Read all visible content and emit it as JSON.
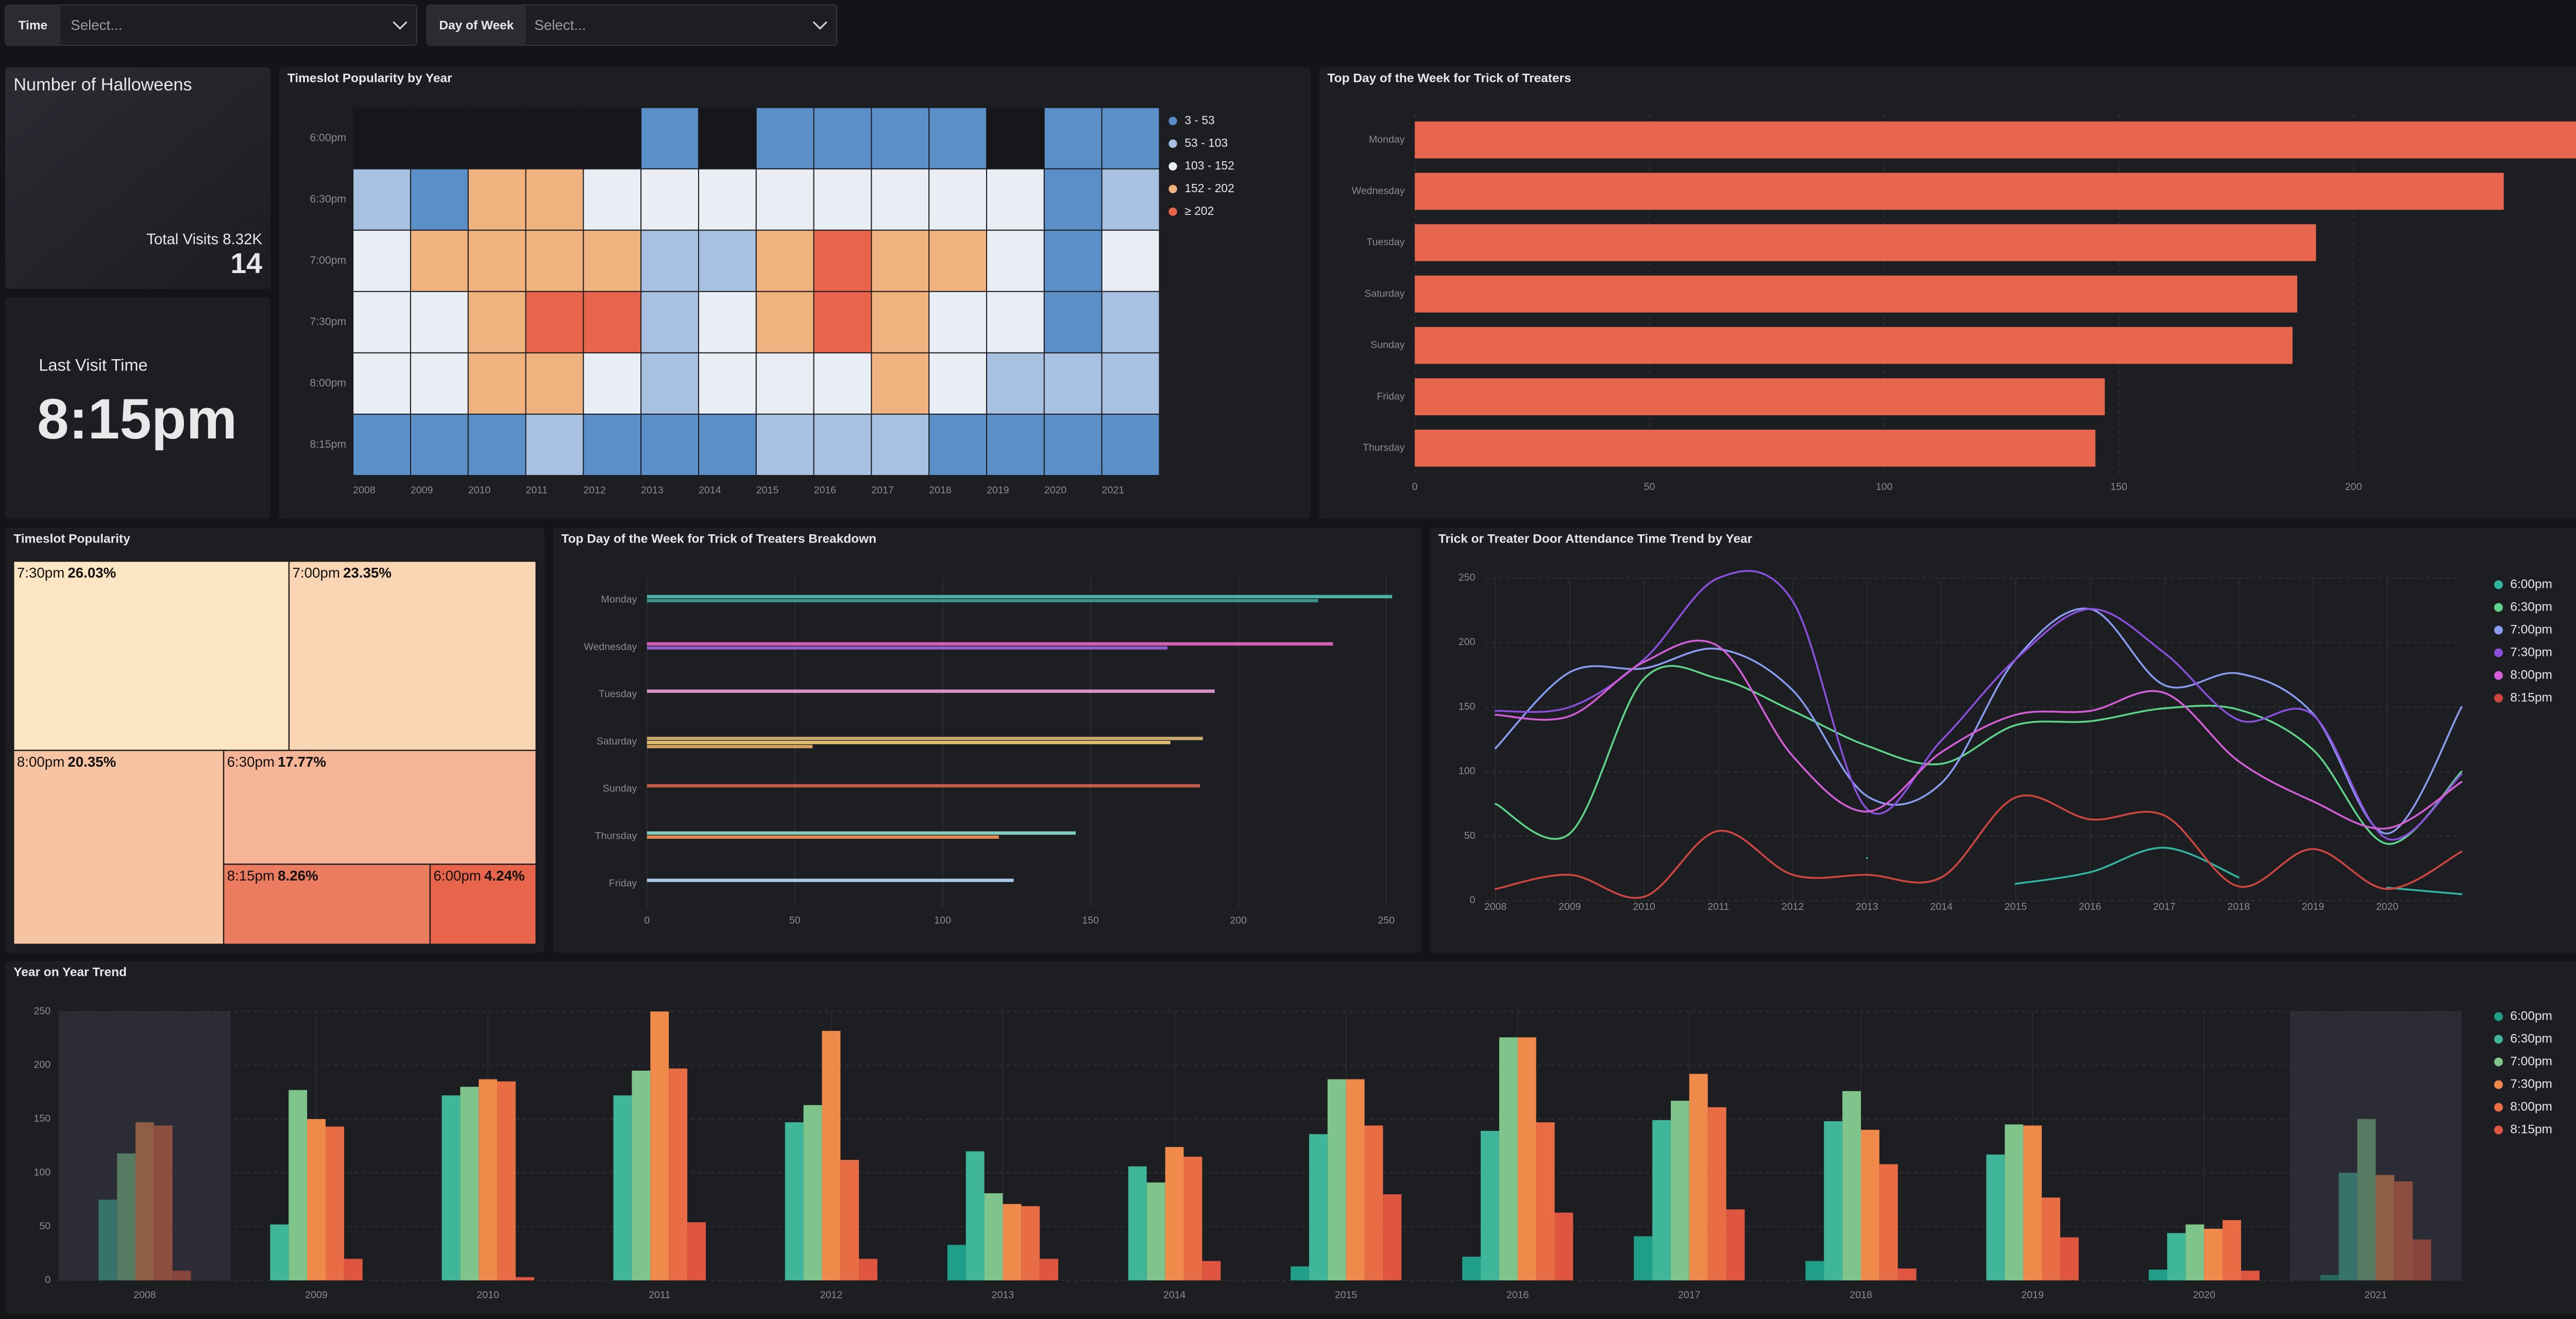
{
  "filters": [
    {
      "label": "Time",
      "placeholder": "Select..."
    },
    {
      "label": "Day of Week",
      "placeholder": "Select..."
    }
  ],
  "kpis": [
    {
      "title": "Number of Halloweens",
      "subtitle": "Total Visits 8.32K",
      "value": 14
    },
    {
      "title": "Last Visit Time",
      "value": "8:15pm"
    }
  ],
  "chart_data": [
    {
      "type": "heatmap",
      "title": "Timeslot Popularity by Year",
      "categories": [
        2008,
        2009,
        2010,
        2011,
        2012,
        2013,
        2014,
        2015,
        2016,
        2017,
        2018,
        2019,
        2020,
        2021
      ],
      "rows": [
        "6:00pm",
        "6:30pm",
        "7:00pm",
        "7:30pm",
        "8:00pm",
        "8:15pm"
      ],
      "values": [
        [
          null,
          null,
          null,
          null,
          null,
          33,
          null,
          13,
          22,
          41,
          18,
          null,
          10,
          5
        ],
        [
          75,
          52,
          172,
          172,
          147,
          120,
          106,
          136,
          139,
          149,
          148,
          117,
          44,
          100
        ],
        [
          118,
          177,
          180,
          195,
          163,
          81,
          91,
          187,
          226,
          167,
          176,
          145,
          52,
          150
        ],
        [
          147,
          150,
          187,
          250,
          232,
          71,
          124,
          187,
          226,
          192,
          140,
          144,
          48,
          98
        ],
        [
          144,
          143,
          185,
          197,
          112,
          69,
          115,
          144,
          147,
          161,
          108,
          77,
          56,
          92
        ],
        [
          9,
          20,
          3,
          54,
          20,
          20,
          18,
          80,
          63,
          66,
          11,
          40,
          9,
          38
        ]
      ],
      "legend": [
        {
          "label": "3 - 53",
          "color": "#5b8fc7",
          "min": 3
        },
        {
          "label": "53 - 103",
          "color": "#a9c1e1",
          "min": 53
        },
        {
          "label": "103 - 152",
          "color": "#e9eef5",
          "min": 103
        },
        {
          "label": "152 - 202",
          "color": "#f0b27f",
          "min": 152
        },
        {
          "label": "≥ 202",
          "color": "#e8644a",
          "min": 202
        }
      ],
      "empty_color": "#16171b"
    },
    {
      "type": "hbar",
      "title": "Top Day of the Week for Trick of Treaters",
      "categories": [
        "Monday",
        "Wednesday",
        "Tuesday",
        "Saturday",
        "Sunday",
        "Friday",
        "Thursday"
      ],
      "values": [
        252,
        232,
        192,
        188,
        187,
        147,
        145
      ],
      "color": "#e8664d",
      "xlim": [
        0,
        252
      ],
      "xticks": [
        0,
        50,
        100,
        150,
        200,
        250
      ],
      "grid": true
    },
    {
      "type": "treemap",
      "title": "Timeslot Popularity",
      "categories": [
        "7:30pm",
        "7:00pm",
        "8:00pm",
        "6:30pm",
        "8:15pm",
        "6:00pm"
      ],
      "values": [
        26.03,
        23.35,
        20.35,
        17.77,
        8.26,
        4.24
      ],
      "value_labels": [
        "26.03%",
        "23.35%",
        "20.35%",
        "17.77%",
        "8.26%",
        "4.24%"
      ],
      "color_range": [
        "#fbe5c2",
        "#e8644a"
      ]
    },
    {
      "type": "hbar_lines",
      "title": "Top Day of the Week for Trick of Treaters Breakdown",
      "categories": [
        "Monday",
        "Wednesday",
        "Tuesday",
        "Saturday",
        "Sunday",
        "Thursday",
        "Friday"
      ],
      "series": [
        {
          "color": "#49b3a6",
          "values": [
            252,
            null,
            null,
            null,
            null,
            null,
            null
          ]
        },
        {
          "color": "#3d8f87",
          "values": [
            227,
            null,
            null,
            null,
            null,
            null,
            null
          ]
        },
        {
          "color": "#d35fb7",
          "values": [
            null,
            232,
            null,
            null,
            null,
            null,
            null
          ]
        },
        {
          "color": "#8e5bc0",
          "values": [
            null,
            176,
            null,
            null,
            null,
            null,
            null
          ]
        },
        {
          "color": "#d892c8",
          "values": [
            null,
            null,
            192,
            null,
            null,
            null,
            null
          ]
        },
        {
          "color": "#c9a86a",
          "values": [
            null,
            null,
            null,
            188,
            null,
            null,
            null
          ]
        },
        {
          "color": "#e0c070",
          "values": [
            null,
            null,
            null,
            177,
            null,
            null,
            null
          ]
        },
        {
          "color": "#d8a060",
          "values": [
            null,
            null,
            null,
            56,
            null,
            null,
            null
          ]
        },
        {
          "color": "#c45a4a",
          "values": [
            null,
            null,
            null,
            null,
            187,
            null,
            null
          ]
        },
        {
          "color": "#7fcfc0",
          "values": [
            null,
            null,
            null,
            null,
            null,
            145,
            null
          ]
        },
        {
          "color": "#e08a50",
          "values": [
            null,
            null,
            null,
            null,
            null,
            119,
            null
          ]
        },
        {
          "color": "#a8c8e8",
          "values": [
            null,
            null,
            null,
            null,
            null,
            null,
            124
          ]
        }
      ],
      "xlim": [
        0,
        252
      ],
      "xticks": [
        0,
        50,
        100,
        150,
        200,
        250
      ],
      "grid": true
    },
    {
      "type": "line",
      "title": "Trick or Treater Door Attendance Time Trend by Year",
      "x": [
        2008,
        2009,
        2010,
        2011,
        2012,
        2013,
        2014,
        2015,
        2016,
        2017,
        2018,
        2019,
        2020,
        2021
      ],
      "xlim": [
        2008,
        2021
      ],
      "xticks": [
        2008,
        2009,
        2010,
        2011,
        2012,
        2013,
        2014,
        2015,
        2016,
        2017,
        2018,
        2019,
        2020
      ],
      "ylim": [
        0,
        250
      ],
      "yticks": [
        0,
        50,
        100,
        150,
        200,
        250
      ],
      "grid": true,
      "legend": "right",
      "series": [
        {
          "name": "6:00pm",
          "color": "#2fb5a0",
          "values": [
            null,
            null,
            null,
            null,
            null,
            33,
            null,
            13,
            22,
            41,
            18,
            null,
            10,
            5
          ]
        },
        {
          "name": "6:30pm",
          "color": "#5ed48a",
          "values": [
            75,
            52,
            172,
            172,
            147,
            120,
            106,
            136,
            139,
            149,
            148,
            117,
            44,
            100
          ]
        },
        {
          "name": "7:00pm",
          "color": "#8a9cf0",
          "values": [
            118,
            177,
            180,
            195,
            163,
            81,
            91,
            187,
            226,
            167,
            176,
            145,
            52,
            150
          ]
        },
        {
          "name": "7:30pm",
          "color": "#8b4fe0",
          "values": [
            147,
            150,
            187,
            250,
            232,
            71,
            124,
            187,
            226,
            192,
            140,
            144,
            48,
            98
          ]
        },
        {
          "name": "8:00pm",
          "color": "#d45ed8",
          "values": [
            144,
            143,
            185,
            197,
            112,
            69,
            115,
            144,
            147,
            161,
            108,
            77,
            56,
            92
          ]
        },
        {
          "name": "8:15pm",
          "color": "#d0453f",
          "values": [
            9,
            20,
            3,
            54,
            20,
            20,
            18,
            80,
            63,
            66,
            11,
            40,
            9,
            38
          ]
        }
      ]
    },
    {
      "type": "grouped_bar",
      "title": "Year on Year Trend",
      "categories": [
        2008,
        2009,
        2010,
        2011,
        2012,
        2013,
        2014,
        2015,
        2016,
        2017,
        2018,
        2019,
        2020,
        2021
      ],
      "ylim": [
        0,
        250
      ],
      "yticks": [
        0,
        50,
        100,
        150,
        200,
        250
      ],
      "grid": true,
      "legend": "right",
      "series": [
        {
          "name": "6:00pm",
          "color": "#1f9e89",
          "values": [
            null,
            null,
            null,
            null,
            null,
            33,
            null,
            13,
            22,
            41,
            18,
            null,
            10,
            5
          ]
        },
        {
          "name": "6:30pm",
          "color": "#3fb59a",
          "values": [
            75,
            52,
            172,
            172,
            147,
            120,
            106,
            136,
            139,
            149,
            148,
            117,
            44,
            100
          ]
        },
        {
          "name": "7:00pm",
          "color": "#7fc48a",
          "values": [
            118,
            177,
            180,
            195,
            163,
            81,
            91,
            187,
            226,
            167,
            176,
            145,
            52,
            150
          ]
        },
        {
          "name": "7:30pm",
          "color": "#f08a4b",
          "values": [
            147,
            150,
            187,
            250,
            232,
            71,
            124,
            187,
            226,
            192,
            140,
            144,
            48,
            98
          ]
        },
        {
          "name": "8:00pm",
          "color": "#e86d45",
          "values": [
            144,
            143,
            185,
            197,
            112,
            69,
            115,
            144,
            147,
            161,
            108,
            77,
            56,
            92
          ]
        },
        {
          "name": "8:15pm",
          "color": "#e0553f",
          "values": [
            9,
            20,
            3,
            54,
            20,
            20,
            18,
            80,
            63,
            66,
            11,
            40,
            9,
            38
          ]
        }
      ]
    }
  ]
}
